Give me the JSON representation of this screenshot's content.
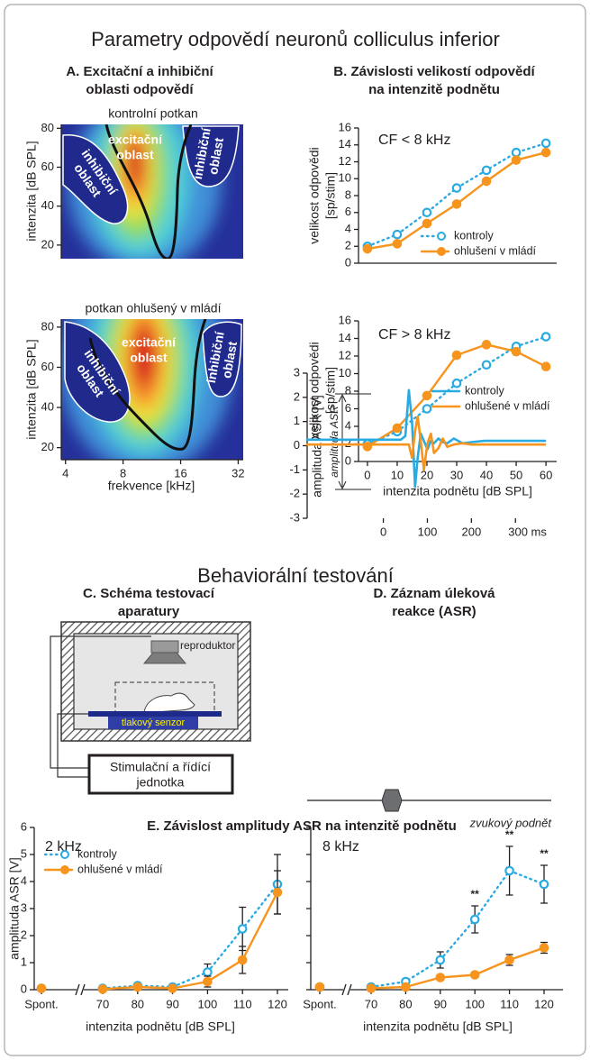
{
  "section_titles": [
    "Parametry odpovědí neuronů colliculus inferior",
    "Behaviorální testování"
  ],
  "apparatus": {
    "title": [
      "C. Schéma testovací",
      "aparatury"
    ],
    "speaker": "reproduktor",
    "sensor": "tlakový senzor",
    "control_unit": [
      "Stimulační a řídící",
      "jednotka"
    ]
  },
  "chart_data": [
    {
      "type": "heatmap",
      "panel_title": [
        "A. Excitační a inhibiční",
        "oblasti odpovědí"
      ],
      "title": "kontrolní potkan",
      "ylabel": "intenzita [dB SPL]",
      "ylim": [
        13,
        82
      ],
      "yticks": [
        20,
        40,
        60,
        80
      ],
      "xlim": [
        3.8,
        34
      ],
      "xscale": "log",
      "excitatory_label": [
        "excitační",
        "oblast"
      ],
      "inhibitory_label": [
        "inhibiční",
        "oblast"
      ]
    },
    {
      "type": "heatmap",
      "title": "potkan ohlušený v mládí",
      "ylabel": "intenzita [dB SPL]",
      "xlabel": "frekvence [kHz]",
      "ylim": [
        14,
        84
      ],
      "yticks": [
        20,
        40,
        60,
        80
      ],
      "xlim": [
        3.8,
        34
      ],
      "xscale": "log",
      "xticks": [
        4,
        8,
        16,
        32
      ],
      "excitatory_label": [
        "excitační",
        "oblast"
      ],
      "inhibitory_label": [
        "inhibiční",
        "oblast"
      ]
    },
    {
      "type": "line",
      "panel_title": [
        "B. Závislosti velikostí odpovědí",
        "na intenzitě podnětu"
      ],
      "annotation": "CF < 8 kHz",
      "ylabel": [
        "velikost odpovědi",
        "[sp/stim]"
      ],
      "x": [
        0,
        10,
        20,
        30,
        40,
        50,
        60
      ],
      "xlim": [
        -3,
        63.6
      ],
      "ylim": [
        0,
        16
      ],
      "yticks": [
        0,
        2,
        4,
        6,
        8,
        10,
        12,
        14,
        16
      ],
      "legend": "lower right",
      "series": [
        {
          "name": "kontroly",
          "color": "#29abe2",
          "dash": true,
          "marker": "open",
          "values": [
            2,
            3.4,
            6,
            8.9,
            11,
            13.1,
            14.2
          ]
        },
        {
          "name": "ohlušení v mládí",
          "color": "#f7941d",
          "marker": "filled",
          "values": [
            1.7,
            2.3,
            4.7,
            7,
            9.7,
            12.2,
            13.1
          ]
        }
      ]
    },
    {
      "type": "line",
      "annotation": "CF > 8 kHz",
      "ylabel": [
        "velikost odpovědi",
        "[sp/stim]"
      ],
      "xlabel": "intenzita podnětu [dB SPL]",
      "x": [
        0,
        10,
        20,
        30,
        40,
        50,
        60
      ],
      "xlim": [
        -3,
        63.6
      ],
      "xticks": [
        0,
        10,
        20,
        30,
        40,
        50,
        60
      ],
      "ylim": [
        0,
        16
      ],
      "yticks": [
        0,
        2,
        4,
        6,
        8,
        10,
        12,
        14,
        16
      ],
      "series": [
        {
          "color": "#29abe2",
          "dash": true,
          "marker": "open",
          "values": [
            2,
            3.4,
            6,
            8.9,
            11,
            13.1,
            14.2
          ]
        },
        {
          "color": "#f7941d",
          "marker": "filled",
          "values": [
            1.7,
            3.8,
            7.5,
            12.1,
            13.3,
            12.5,
            10.8
          ]
        }
      ]
    },
    {
      "type": "line",
      "panel_title": [
        "D. Záznam úleková",
        "reakce (ASR)"
      ],
      "ylabel": "amplituda ASR [V]",
      "annotation": "amplituda ASR",
      "stimulus_label": "zvukový podnět",
      "x": [
        -173,
        40,
        50,
        58,
        65,
        72,
        78,
        85,
        92,
        100,
        108,
        115,
        125,
        135,
        145,
        160,
        180,
        200,
        230,
        367
      ],
      "xlim": [
        -173,
        367
      ],
      "xticks": [
        0,
        100,
        200,
        {
          "value": 300,
          "label": "300 ms"
        }
      ],
      "ylim": [
        -3,
        3
      ],
      "yticks": [
        -3,
        -2,
        -1,
        0,
        1,
        2,
        3
      ],
      "legend": "upper right",
      "series": [
        {
          "name": "kontroly",
          "color": "#29abe2",
          "values": [
            0.25,
            0.25,
            0.4,
            2.3,
            1.0,
            -1.7,
            -0.5,
            0.5,
            0.2,
            -0.15,
            0.2,
            0.1,
            0.3,
            0.15,
            0.1,
            0.3,
            0.1,
            0.15,
            0.2,
            0.2
          ]
        },
        {
          "name": "ohlušené v mládí",
          "color": "#f7941d",
          "values": [
            0.05,
            0.05,
            0.05,
            0.05,
            -0.5,
            0.6,
            1.2,
            0.2,
            -1.0,
            0.1,
            0.5,
            -0.3,
            -0.1,
            0.3,
            -0.05,
            0.05,
            0.1,
            0.05,
            0.05,
            0.05
          ]
        }
      ]
    },
    {
      "type": "line",
      "panel_title": "E. Závislost amplitudy ASR na intenzitě podnětu",
      "annotation": "2 kHz",
      "ylabel": "amplituda ASR [V]",
      "xlabel": "intenzita podnětu [dB SPL]",
      "categories": [
        "Spont.",
        "70",
        "80",
        "90",
        "100",
        "110",
        "120"
      ],
      "ylim": [
        0,
        6
      ],
      "yticks": [
        0,
        1,
        2,
        3,
        4,
        5,
        6
      ],
      "legend": "upper left",
      "series": [
        {
          "name": "kontroly",
          "color": "#29abe2",
          "dash": true,
          "marker": "open",
          "values": [
            0.05,
            0.05,
            0.15,
            0.1,
            0.65,
            2.25,
            3.9
          ],
          "errors": [
            0.03,
            0.03,
            0.05,
            0.05,
            0.3,
            0.8,
            1.1
          ]
        },
        {
          "name": "ohlušené v mládí",
          "color": "#f7941d",
          "marker": "filled",
          "values": [
            0.05,
            0.02,
            0.1,
            0.05,
            0.3,
            1.1,
            3.6
          ],
          "errors": [
            0.03,
            0.03,
            0.05,
            0.05,
            0.2,
            0.5,
            0.8
          ]
        }
      ]
    },
    {
      "type": "line",
      "annotation": "8 kHz",
      "xlabel": "intenzita podnětu [dB SPL]",
      "categories": [
        "Spont.",
        "70",
        "80",
        "90",
        "100",
        "110",
        "120"
      ],
      "ylim": [
        0,
        6
      ],
      "yticks": [
        0,
        1,
        2,
        3,
        4,
        5,
        6
      ],
      "significance": [
        null,
        null,
        null,
        null,
        "**",
        "**",
        "**"
      ],
      "series": [
        {
          "color": "#29abe2",
          "dash": true,
          "marker": "open",
          "values": [
            0.1,
            0.1,
            0.3,
            1.1,
            2.6,
            4.4,
            3.9
          ],
          "errors": [
            0.05,
            0.05,
            0.1,
            0.3,
            0.5,
            0.9,
            0.7
          ]
        },
        {
          "color": "#f7941d",
          "marker": "filled",
          "values": [
            0.1,
            0.05,
            0.1,
            0.45,
            0.55,
            1.1,
            1.55
          ],
          "errors": [
            0.05,
            0.03,
            0.05,
            0.1,
            0.1,
            0.2,
            0.2
          ]
        }
      ]
    }
  ]
}
